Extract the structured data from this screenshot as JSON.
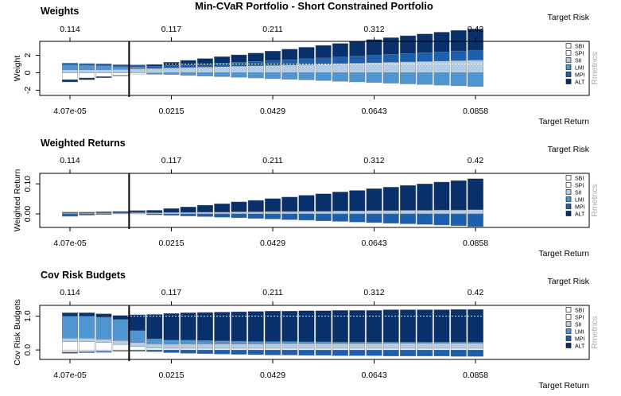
{
  "figure": {
    "title": "Min-CVaR Portfolio - Short Constrained Portfolio",
    "watermark": "Rmetrics",
    "colors": {
      "SBI": "#ffffff",
      "SPI": "#ffffff",
      "SII": "#b3cde6",
      "LMI": "#4f95d2",
      "MPI": "#1c5fae",
      "ALT": "#08306b"
    }
  },
  "chart_data": [
    {
      "type": "bar",
      "title": "Weights",
      "ylabel": "Weight",
      "xlabel": "Target Return",
      "top_axis_label": "Target Risk",
      "bottom_ticks": [
        "4.07e-05",
        "0.0215",
        "0.0429",
        "0.0643",
        "0.0858"
      ],
      "top_ticks": [
        "0.114",
        "0.117",
        "0.211",
        "0.312",
        "0.42"
      ],
      "y_ticks": [
        "-2",
        "0",
        "2"
      ],
      "ylim": [
        -2.6,
        3.6
      ],
      "min_variance_index": 4,
      "legend": [
        "SBI",
        "SPI",
        "SII",
        "LMI",
        "MPI",
        "ALT"
      ],
      "categories": [
        "1",
        "2",
        "3",
        "4",
        "5",
        "6",
        "7",
        "8",
        "9",
        "10",
        "11",
        "12",
        "13",
        "14",
        "15",
        "16",
        "17",
        "18",
        "19",
        "20",
        "21",
        "22",
        "23",
        "24",
        "25"
      ],
      "series": [
        {
          "name": "SBI",
          "values": [
            -0.8,
            -0.6,
            -0.45,
            -0.3,
            -0.15,
            -0.08,
            0,
            0,
            0,
            0,
            0,
            0,
            0,
            0,
            0,
            0,
            0,
            0,
            0,
            0,
            0,
            0,
            0,
            0,
            0
          ]
        },
        {
          "name": "SPI",
          "values": [
            0,
            0,
            0,
            0,
            0,
            0,
            0,
            0,
            0,
            0,
            0,
            0,
            0,
            0,
            0,
            0,
            0,
            0,
            0,
            0,
            0,
            0,
            0,
            0,
            0
          ]
        },
        {
          "name": "SII",
          "values": [
            0.35,
            0.35,
            0.36,
            0.38,
            0.45,
            0.5,
            0.55,
            0.6,
            0.65,
            0.7,
            0.75,
            0.8,
            0.85,
            0.9,
            0.95,
            1.0,
            1.05,
            1.1,
            1.15,
            1.2,
            1.25,
            1.3,
            1.35,
            1.4,
            1.45
          ]
        },
        {
          "name": "LMI",
          "values": [
            0.55,
            0.5,
            0.45,
            0.3,
            0.2,
            -0.1,
            -0.2,
            -0.3,
            -0.38,
            -0.45,
            -0.52,
            -0.6,
            -0.68,
            -0.75,
            -0.82,
            -0.9,
            -0.98,
            -1.05,
            -1.12,
            -1.2,
            -1.28,
            -1.35,
            -1.42,
            -1.5,
            -1.58
          ]
        },
        {
          "name": "MPI",
          "values": [
            0.2,
            0.2,
            0.22,
            0.24,
            0.25,
            0.25,
            0.3,
            0.34,
            0.38,
            0.42,
            0.46,
            0.5,
            0.55,
            0.6,
            0.65,
            0.7,
            0.75,
            0.8,
            0.85,
            0.9,
            0.95,
            1.0,
            1.05,
            1.1,
            1.1
          ]
        },
        {
          "name": "ALT",
          "values": [
            -0.25,
            -0.2,
            -0.12,
            -0.06,
            0,
            0.2,
            0.35,
            0.48,
            0.6,
            0.72,
            0.84,
            0.96,
            1.08,
            1.2,
            1.32,
            1.44,
            1.56,
            1.68,
            1.8,
            1.92,
            2.04,
            2.15,
            2.25,
            2.35,
            2.47
          ]
        }
      ]
    },
    {
      "type": "bar",
      "title": "Weighted Returns",
      "ylabel": "Weighted Return",
      "xlabel": "Target Return",
      "top_axis_label": "Target Risk",
      "bottom_ticks": [
        "4.07e-05",
        "0.0215",
        "0.0429",
        "0.0643",
        "0.0858"
      ],
      "top_ticks": [
        "0.114",
        "0.117",
        "0.211",
        "0.312",
        "0.42"
      ],
      "y_ticks": [
        "0.00",
        "0.10"
      ],
      "ylim": [
        -0.045,
        0.135
      ],
      "min_variance_index": 4,
      "legend": [
        "SBI",
        "SPI",
        "SII",
        "LMI",
        "MPI",
        "ALT"
      ],
      "categories": [
        "1",
        "2",
        "3",
        "4",
        "5",
        "6",
        "7",
        "8",
        "9",
        "10",
        "11",
        "12",
        "13",
        "14",
        "15",
        "16",
        "17",
        "18",
        "19",
        "20",
        "21",
        "22",
        "23",
        "24",
        "25"
      ],
      "series": [
        {
          "name": "SBI",
          "values": [
            0,
            0,
            0,
            0,
            0,
            0,
            0,
            0,
            0,
            0,
            0,
            0,
            0,
            0,
            0,
            0,
            0,
            0,
            0,
            0,
            0,
            0,
            0,
            0,
            0
          ]
        },
        {
          "name": "SPI",
          "values": [
            0,
            0,
            0,
            0,
            0,
            0,
            0,
            0,
            0,
            0,
            0,
            0,
            0,
            0,
            0,
            0,
            0,
            0,
            0,
            0,
            0,
            0,
            0,
            0,
            0
          ]
        },
        {
          "name": "SII",
          "values": [
            0.003,
            0.003,
            0.003,
            0.003,
            0.004,
            0.004,
            0.005,
            0.005,
            0.006,
            0.006,
            0.007,
            0.007,
            0.008,
            0.008,
            0.009,
            0.009,
            0.01,
            0.01,
            0.011,
            0.011,
            0.012,
            0.012,
            0.013,
            0.013,
            0.014
          ]
        },
        {
          "name": "LMI",
          "values": [
            0.001,
            0.001,
            0.001,
            0.001,
            0,
            0,
            0,
            0,
            0,
            0,
            0,
            0,
            0,
            0,
            0,
            0,
            0,
            0,
            0,
            0,
            0,
            0,
            0,
            0,
            0
          ]
        },
        {
          "name": "MPI",
          "values": [
            -0.008,
            -0.004,
            -0.002,
            0,
            0.002,
            -0.003,
            -0.005,
            -0.007,
            -0.009,
            -0.011,
            -0.013,
            -0.015,
            -0.017,
            -0.019,
            -0.021,
            -0.023,
            -0.025,
            -0.027,
            -0.029,
            -0.031,
            -0.033,
            -0.035,
            -0.037,
            -0.039,
            -0.042
          ]
        },
        {
          "name": "ALT",
          "values": [
            0.002,
            0.002,
            0.003,
            0.004,
            0.005,
            0.008,
            0.013,
            0.018,
            0.023,
            0.028,
            0.033,
            0.038,
            0.043,
            0.048,
            0.053,
            0.058,
            0.063,
            0.068,
            0.073,
            0.078,
            0.083,
            0.088,
            0.093,
            0.098,
            0.103
          ]
        }
      ]
    },
    {
      "type": "bar",
      "title": "Cov Risk Budgets",
      "ylabel": "Cov Risk Budgets",
      "xlabel": "Target Return",
      "top_axis_label": "Target Risk",
      "bottom_ticks": [
        "4.07e-05",
        "0.0215",
        "0.0429",
        "0.0643",
        "0.0858"
      ],
      "top_ticks": [
        "0.114",
        "0.117",
        "0.211",
        "0.312",
        "0.42"
      ],
      "y_ticks": [
        "0.0",
        "1.0"
      ],
      "ylim": [
        -0.28,
        1.32
      ],
      "min_variance_index": 4,
      "legend": [
        "SBI",
        "SPI",
        "SII",
        "LMI",
        "MPI",
        "ALT"
      ],
      "categories": [
        "1",
        "2",
        "3",
        "4",
        "5",
        "6",
        "7",
        "8",
        "9",
        "10",
        "11",
        "12",
        "13",
        "14",
        "15",
        "16",
        "17",
        "18",
        "19",
        "20",
        "21",
        "22",
        "23",
        "24",
        "25"
      ],
      "series": [
        {
          "name": "SBI",
          "values": [
            -0.06,
            -0.05,
            -0.04,
            -0.02,
            -0.01,
            0,
            0,
            0,
            0,
            0,
            0,
            0,
            0,
            0,
            0,
            0,
            0,
            0,
            0,
            0,
            0,
            0,
            0,
            0,
            0
          ]
        },
        {
          "name": "SPI",
          "values": [
            0.25,
            0.25,
            0.22,
            0.16,
            0.1,
            0.06,
            0.05,
            0.05,
            0.05,
            0.05,
            0.05,
            0.05,
            0.05,
            0.05,
            0.05,
            0.05,
            0.05,
            0.05,
            0.05,
            0.05,
            0.05,
            0.05,
            0.05,
            0.05,
            0.05
          ]
        },
        {
          "name": "SII",
          "values": [
            0.1,
            0.1,
            0.1,
            0.12,
            0.12,
            0.12,
            0.12,
            0.13,
            0.13,
            0.13,
            0.13,
            0.13,
            0.14,
            0.14,
            0.14,
            0.14,
            0.14,
            0.14,
            0.14,
            0.15,
            0.15,
            0.15,
            0.15,
            0.15,
            0.15
          ]
        },
        {
          "name": "LMI",
          "values": [
            0.65,
            0.65,
            0.65,
            0.62,
            0.35,
            0.15,
            0.12,
            0.11,
            0.1,
            0.09,
            0.08,
            0.07,
            0.06,
            0.06,
            0.05,
            0.05,
            0.04,
            0.04,
            0.04,
            0.03,
            0.03,
            0.03,
            0.03,
            0.03,
            0.03
          ]
        },
        {
          "name": "MPI",
          "values": [
            -0.04,
            -0.03,
            -0.03,
            -0.02,
            -0.03,
            -0.05,
            -0.08,
            -0.1,
            -0.11,
            -0.12,
            -0.13,
            -0.14,
            -0.15,
            -0.15,
            -0.16,
            -0.16,
            -0.17,
            -0.17,
            -0.17,
            -0.18,
            -0.18,
            -0.18,
            -0.18,
            -0.19,
            -0.19
          ]
        },
        {
          "name": "ALT",
          "values": [
            0.1,
            0.1,
            0.1,
            0.12,
            0.47,
            0.72,
            0.79,
            0.81,
            0.83,
            0.85,
            0.87,
            0.89,
            0.9,
            0.9,
            0.92,
            0.92,
            0.94,
            0.94,
            0.94,
            0.96,
            0.96,
            0.96,
            0.96,
            0.97,
            0.97
          ]
        }
      ]
    }
  ]
}
